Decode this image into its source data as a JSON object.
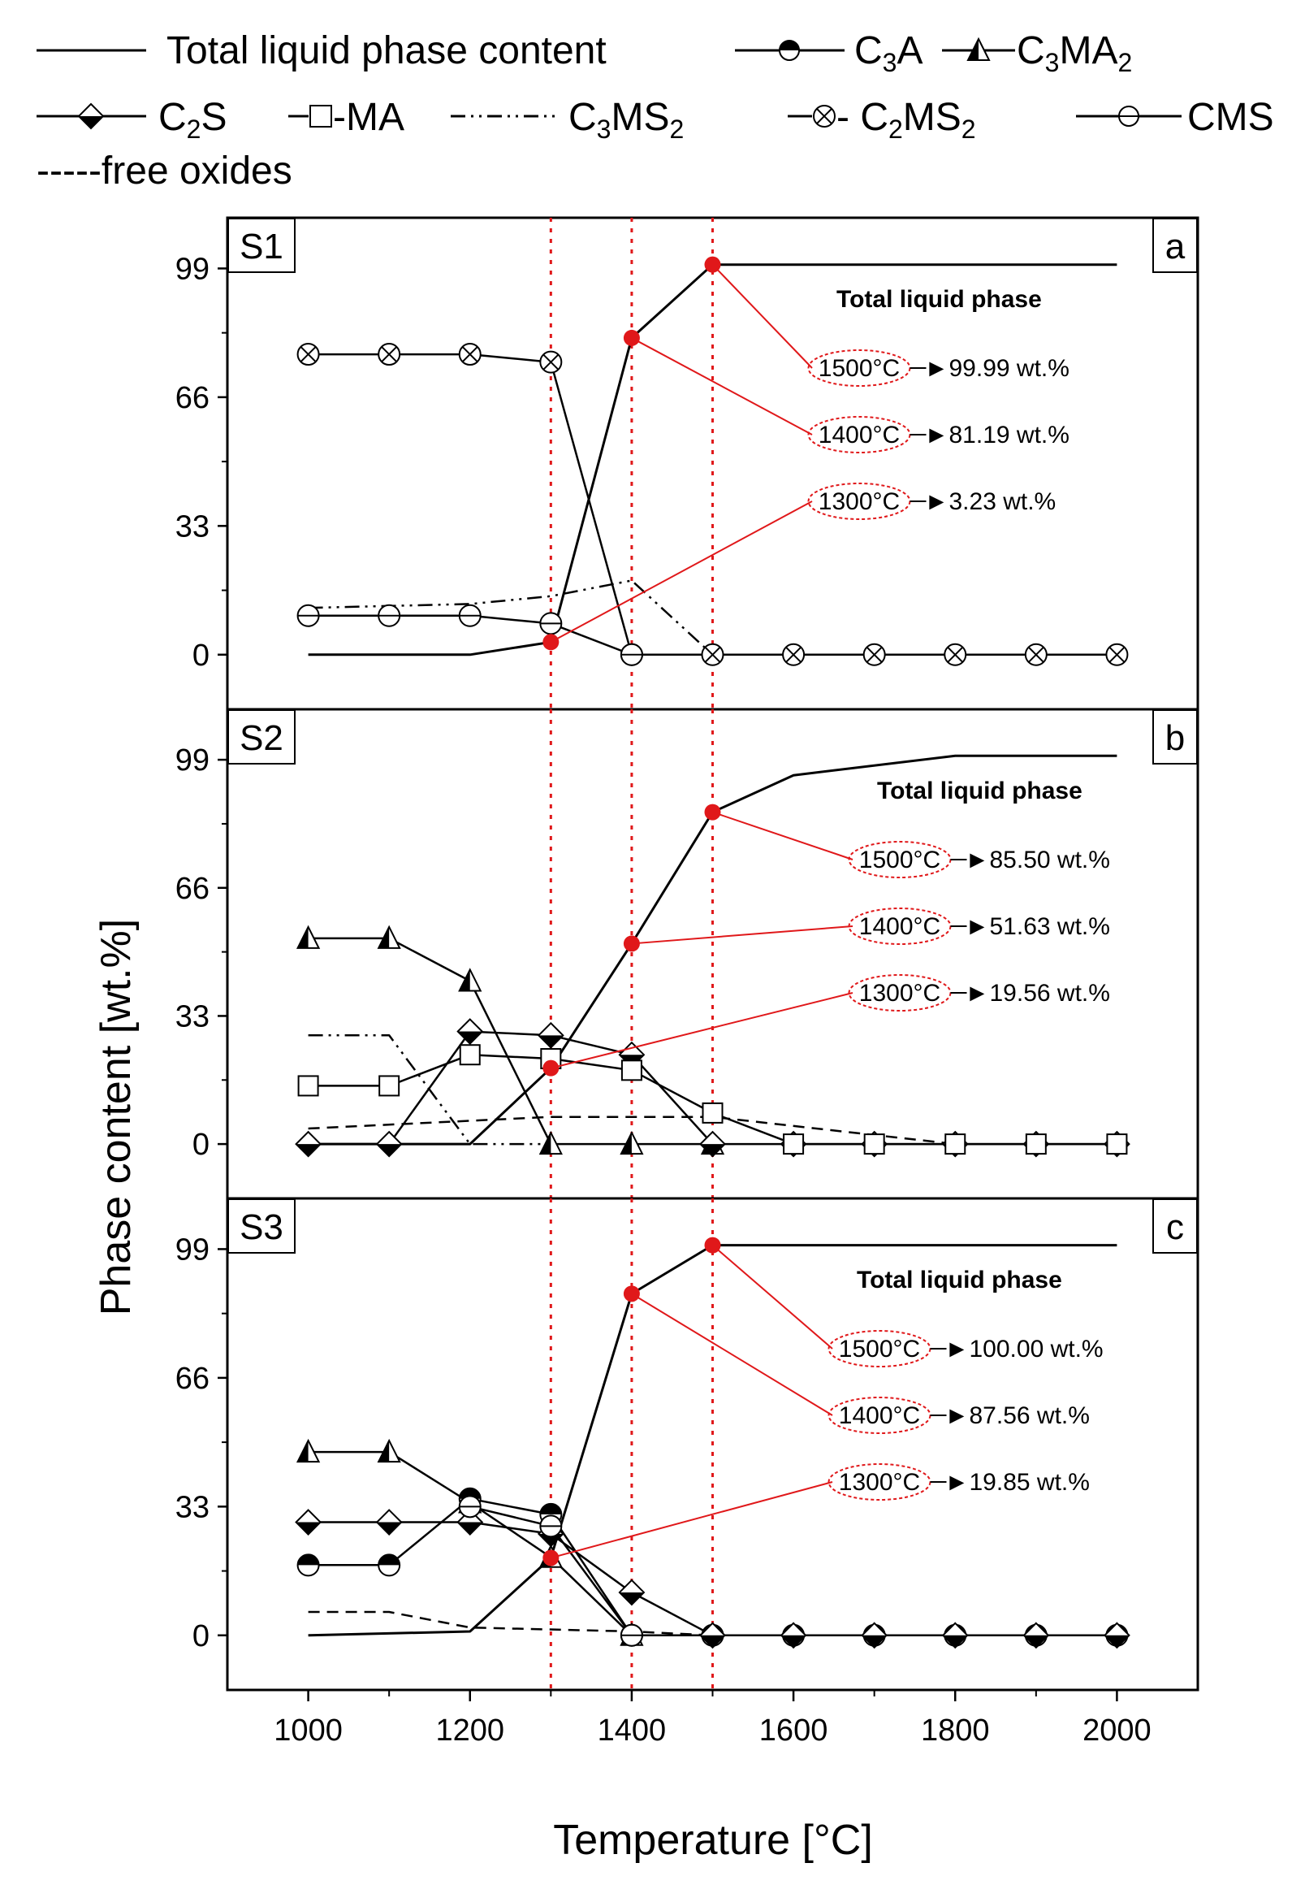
{
  "chart_data": {
    "type": "line",
    "xlabel": "Temperature [°C]",
    "ylabel": "Phase content [wt.%]",
    "xlim": [
      900,
      2100
    ],
    "x_ticks": [
      1000,
      1200,
      1400,
      1600,
      1800,
      2000
    ],
    "ylim": [
      -14,
      112
    ],
    "y_ticks": [
      0,
      33,
      66,
      99
    ],
    "reference_lines_x": [
      1300,
      1400,
      1500
    ],
    "legend": [
      {
        "key": "total",
        "label": "Total liquid phase content"
      },
      {
        "key": "c3a",
        "label_main": "C",
        "label_sub": "3",
        "label_tail": "A"
      },
      {
        "key": "c3ma2",
        "label_main": "C",
        "label_sub": "3",
        "label_mid": "MA",
        "label_sub2": "2"
      },
      {
        "key": "c2s",
        "label_main": "C",
        "label_sub": "2",
        "label_tail": "S"
      },
      {
        "key": "ma",
        "label": "-MA"
      },
      {
        "key": "c3ms2",
        "label_main": "C",
        "label_sub": "3",
        "label_mid": "MS",
        "label_sub2": "2"
      },
      {
        "key": "c2ms2",
        "label_pre": "- C",
        "label_sub": "2",
        "label_mid": "MS",
        "label_sub2": "2"
      },
      {
        "key": "cms",
        "label": "CMS"
      },
      {
        "key": "free_oxides",
        "label": "-----free oxides"
      }
    ],
    "panels": [
      {
        "sample": "S1",
        "letter": "a",
        "annotation": {
          "title": "Total liquid phase",
          "items": [
            {
              "temp": "1500°C",
              "arrow": "►",
              "value": "99.99 wt.%",
              "at": 1500,
              "y": 99.99
            },
            {
              "temp": "1400°C",
              "arrow": "►",
              "value": "81.19 wt.%",
              "at": 1400,
              "y": 81.19
            },
            {
              "temp": "1300°C",
              "arrow": "►",
              "value": "3.23 wt.%",
              "at": 1300,
              "y": 3.23
            }
          ]
        },
        "series": [
          {
            "name": "Total liquid phase content",
            "key": "total",
            "x": [
              1000,
              1200,
              1300,
              1400,
              1500,
              2000
            ],
            "values": [
              0,
              0,
              3.23,
              81.19,
              99.99,
              99.99
            ]
          },
          {
            "name": "C2MS2",
            "key": "c2ms2",
            "x": [
              1000,
              1100,
              1200,
              1300,
              1400,
              1500,
              1600,
              1700,
              1800,
              1900,
              2000
            ],
            "values": [
              77,
              77,
              77,
              75,
              0,
              0,
              0,
              0,
              0,
              0,
              0
            ]
          },
          {
            "name": "C3MS2",
            "key": "c3ms2",
            "x": [
              1000,
              1200,
              1300,
              1400,
              1500
            ],
            "values": [
              12,
              13,
              15,
              19,
              0
            ]
          },
          {
            "name": "CMS",
            "key": "cms",
            "x": [
              1000,
              1100,
              1200,
              1300,
              1400
            ],
            "values": [
              10,
              10,
              10,
              8,
              0
            ]
          }
        ]
      },
      {
        "sample": "S2",
        "letter": "b",
        "annotation": {
          "title": "Total liquid phase",
          "items": [
            {
              "temp": "1500°C",
              "arrow": "►",
              "value": "85.50 wt.%",
              "at": 1500,
              "y": 85.5
            },
            {
              "temp": "1400°C",
              "arrow": "►",
              "value": "51.63 wt.%",
              "at": 1400,
              "y": 51.63
            },
            {
              "temp": "1300°C",
              "arrow": "►",
              "value": "19.56 wt.%",
              "at": 1300,
              "y": 19.56
            }
          ]
        },
        "series": [
          {
            "name": "Total liquid phase content",
            "key": "total",
            "x": [
              1000,
              1200,
              1300,
              1400,
              1500,
              1600,
              1800,
              2000
            ],
            "values": [
              0,
              0,
              19.56,
              51.63,
              85.5,
              95,
              100,
              100
            ]
          },
          {
            "name": "C3MA2",
            "key": "c3ma2",
            "x": [
              1000,
              1100,
              1200,
              1300,
              1400,
              1500
            ],
            "values": [
              53,
              53,
              42,
              0,
              0,
              0
            ]
          },
          {
            "name": "C2S",
            "key": "c2s",
            "x": [
              1000,
              1100,
              1200,
              1300,
              1400,
              1500,
              1600,
              1700,
              1800,
              1900,
              2000
            ],
            "values": [
              0,
              0,
              29,
              28,
              23,
              0,
              0,
              0,
              0,
              0,
              0
            ]
          },
          {
            "name": "MA",
            "key": "ma",
            "x": [
              1000,
              1100,
              1200,
              1300,
              1400,
              1500,
              1600,
              1700,
              1800,
              1900,
              2000
            ],
            "values": [
              15,
              15,
              23,
              22,
              19,
              8,
              0,
              0,
              0,
              0,
              0
            ]
          },
          {
            "name": "C3MS2",
            "key": "c3ms2",
            "x": [
              1000,
              1100,
              1200,
              1300
            ],
            "values": [
              28,
              28,
              0,
              0
            ]
          },
          {
            "name": "free oxides",
            "key": "free_oxides",
            "x": [
              1000,
              1300,
              1500,
              1800
            ],
            "values": [
              4,
              7,
              7,
              0
            ]
          }
        ]
      },
      {
        "sample": "S3",
        "letter": "c",
        "annotation": {
          "title": "Total liquid phase",
          "items": [
            {
              "temp": "1500°C",
              "arrow": "►",
              "value": "100.00 wt.%",
              "at": 1500,
              "y": 100
            },
            {
              "temp": "1400°C",
              "arrow": "►",
              "value": "87.56 wt.%",
              "at": 1400,
              "y": 87.56
            },
            {
              "temp": "1300°C",
              "arrow": "►",
              "value": "19.85 wt.%",
              "at": 1300,
              "y": 19.85
            }
          ]
        },
        "series": [
          {
            "name": "Total liquid phase content",
            "key": "total",
            "x": [
              1000,
              1200,
              1300,
              1400,
              1500,
              2000
            ],
            "values": [
              0,
              1,
              19.85,
              87.56,
              100,
              100
            ]
          },
          {
            "name": "C3MA2",
            "key": "c3ma2",
            "x": [
              1000,
              1100,
              1200,
              1300,
              1400
            ],
            "values": [
              47,
              47,
              34,
              20,
              0
            ]
          },
          {
            "name": "C3A",
            "key": "c3a",
            "x": [
              1000,
              1100,
              1200,
              1300,
              1400,
              1500,
              1600,
              1700,
              1800,
              1900,
              2000
            ],
            "values": [
              18,
              18,
              35,
              31,
              0,
              0,
              0,
              0,
              0,
              0,
              0
            ]
          },
          {
            "name": "C2S",
            "key": "c2s",
            "x": [
              1000,
              1100,
              1200,
              1300,
              1400,
              1500,
              1600,
              1700,
              1800,
              1900,
              2000
            ],
            "values": [
              29,
              29,
              29,
              26,
              11,
              0,
              0,
              0,
              0,
              0,
              0
            ]
          },
          {
            "name": "CMS",
            "key": "cms",
            "x": [
              1200,
              1300,
              1400
            ],
            "values": [
              33,
              28,
              0
            ]
          },
          {
            "name": "free oxides",
            "key": "free_oxides",
            "x": [
              1000,
              1100,
              1200,
              1400,
              1500
            ],
            "values": [
              6,
              6,
              2,
              1,
              0
            ]
          }
        ]
      }
    ]
  }
}
